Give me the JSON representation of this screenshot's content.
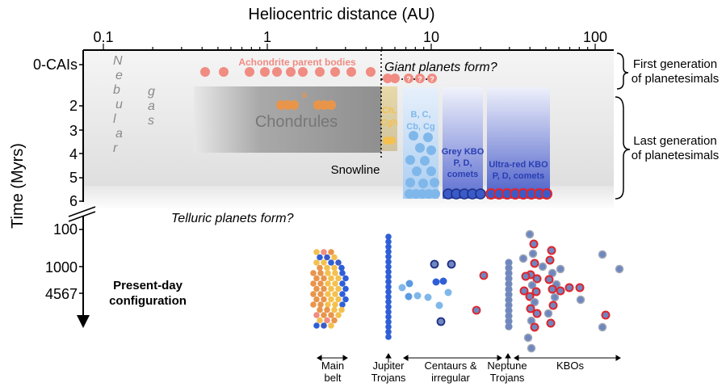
{
  "axis": {
    "x_title": "Heliocentric distance (AU)",
    "x_ticks": [
      "0.1",
      "1",
      "10",
      "100"
    ],
    "y_title": "Time (Myrs)",
    "y_ticks_top": [
      "0-CAIs",
      "2",
      "3",
      "4",
      "5",
      "6"
    ],
    "y_ticks_bottom": [
      "100",
      "1000",
      "4567"
    ],
    "scale": "log"
  },
  "labels": {
    "nebular": [
      "N",
      "e",
      "b",
      "u",
      "l",
      "a",
      "r"
    ],
    "gas": [
      "g",
      "a",
      "s"
    ],
    "achondrite": "Achondrite parent bodies",
    "giant_planets": "Giant planets form?",
    "chondrules": "Chondrules",
    "s": "s",
    "ch_cgb": [
      "Ch,",
      "Cgh"
    ],
    "bc_types": [
      "B, C,",
      "Cb, Cg"
    ],
    "grey_kbo": [
      "Grey KBO",
      "P, D,",
      "comets"
    ],
    "ultrared_kbo": [
      "Ultra-red KBO",
      "P, D, comets"
    ],
    "snowline": "Snowline",
    "telluric": "Telluric planets form?",
    "present_day": [
      "Present-day",
      "configuration"
    ],
    "first_gen": [
      "First generation",
      "of planetesimals"
    ],
    "last_gen": [
      "Last generation",
      "of planetesimals"
    ]
  },
  "bottom_labels": [
    {
      "text": [
        "Main",
        "belt"
      ]
    },
    {
      "text": [
        "Jupiter",
        "Trojans"
      ]
    },
    {
      "text": [
        "Centaurs &",
        "irregular"
      ]
    },
    {
      "text": [
        "Neptune",
        "Trojans"
      ]
    },
    {
      "text": [
        "KBOs"
      ]
    }
  ],
  "colors": {
    "achondrite": "#f08c82",
    "chondrule": "#e8954b",
    "ch_cgb": "#f4c04f",
    "bc": "#7fb7ea",
    "grey_kbo": "#3a5bc7",
    "ultrared_kbo_ring": "#e0242c",
    "jupiter_trojans": "#2f5fd8",
    "neptune_trojans": "#6f87c0",
    "centaurs": "#5b9ae0"
  }
}
